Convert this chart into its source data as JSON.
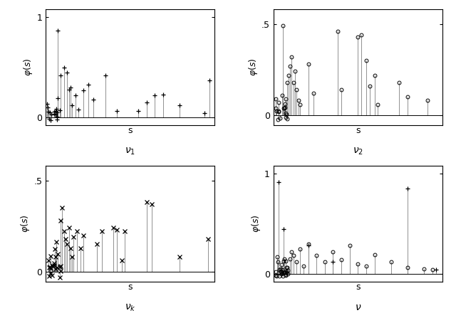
{
  "subplots": [
    {
      "label": "$\\nu_1$",
      "marker": "+",
      "ylabel": "$\\varphi(s)$",
      "xlabel": "s",
      "ylim": [
        -0.08,
        1.08
      ],
      "yticks": [
        0,
        1
      ],
      "yticklabels": [
        "0",
        "1"
      ],
      "color": "black"
    },
    {
      "label": "$\\nu_2$",
      "marker": "o",
      "ylabel": "$\\varphi(s)$",
      "xlabel": "s",
      "ylim": [
        -0.055,
        0.58
      ],
      "yticks": [
        0,
        0.5
      ],
      "yticklabels": [
        "0",
        ".5"
      ],
      "color": "black"
    },
    {
      "label": "$\\nu_k$",
      "marker": "x",
      "ylabel": "$\\varphi(s)$",
      "xlabel": "s",
      "ylim": [
        -0.055,
        0.58
      ],
      "yticks": [
        0,
        0.5
      ],
      "yticklabels": [
        "0",
        ".5"
      ],
      "color": "black"
    },
    {
      "label": "$\\nu$",
      "ylabel": "$\\varphi(s)$",
      "xlabel": "s",
      "ylim": [
        -0.08,
        1.08
      ],
      "yticks": [
        0,
        1
      ],
      "yticklabels": [
        "0",
        "1"
      ],
      "color": "black"
    }
  ],
  "background_color": "white",
  "figsize": [
    6.4,
    4.4
  ],
  "dpi": 100
}
